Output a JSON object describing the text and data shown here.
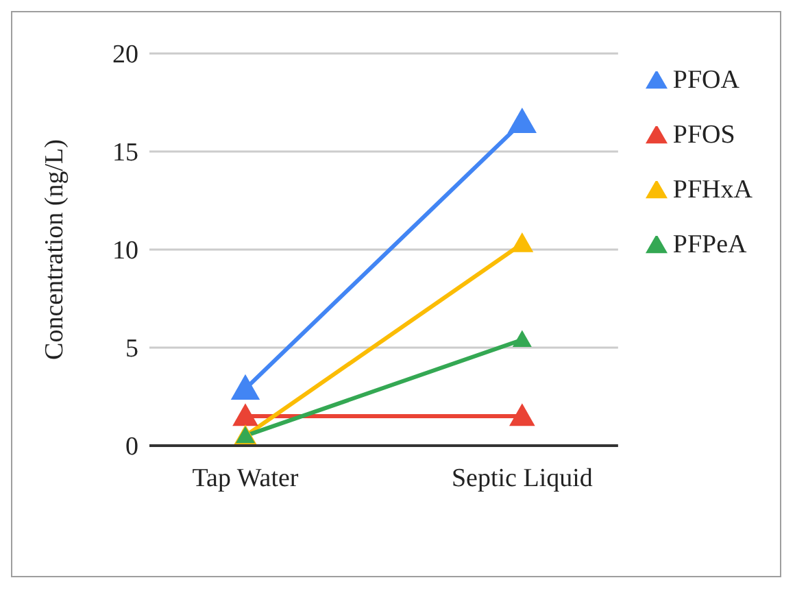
{
  "chart_data": {
    "type": "line",
    "ylabel": "Concentration (ng/L)",
    "categories": [
      "Tap Water",
      "Septic Liquid"
    ],
    "series": [
      {
        "name": "PFOA",
        "color": "#4285f4",
        "values": [
          2.9,
          16.5
        ]
      },
      {
        "name": "PFOS",
        "color": "#ea4335",
        "values": [
          1.5,
          1.5
        ]
      },
      {
        "name": "PFHxA",
        "color": "#fbbc04",
        "values": [
          0.5,
          10.3
        ]
      },
      {
        "name": "PFPeA",
        "color": "#34a853",
        "values": [
          0.5,
          5.4
        ]
      }
    ],
    "ylim": [
      0,
      20
    ],
    "yticks": [
      0,
      5,
      10,
      15,
      20
    ],
    "grid": "y",
    "legend": "right",
    "marker": "triangle",
    "line_style": "solid"
  }
}
